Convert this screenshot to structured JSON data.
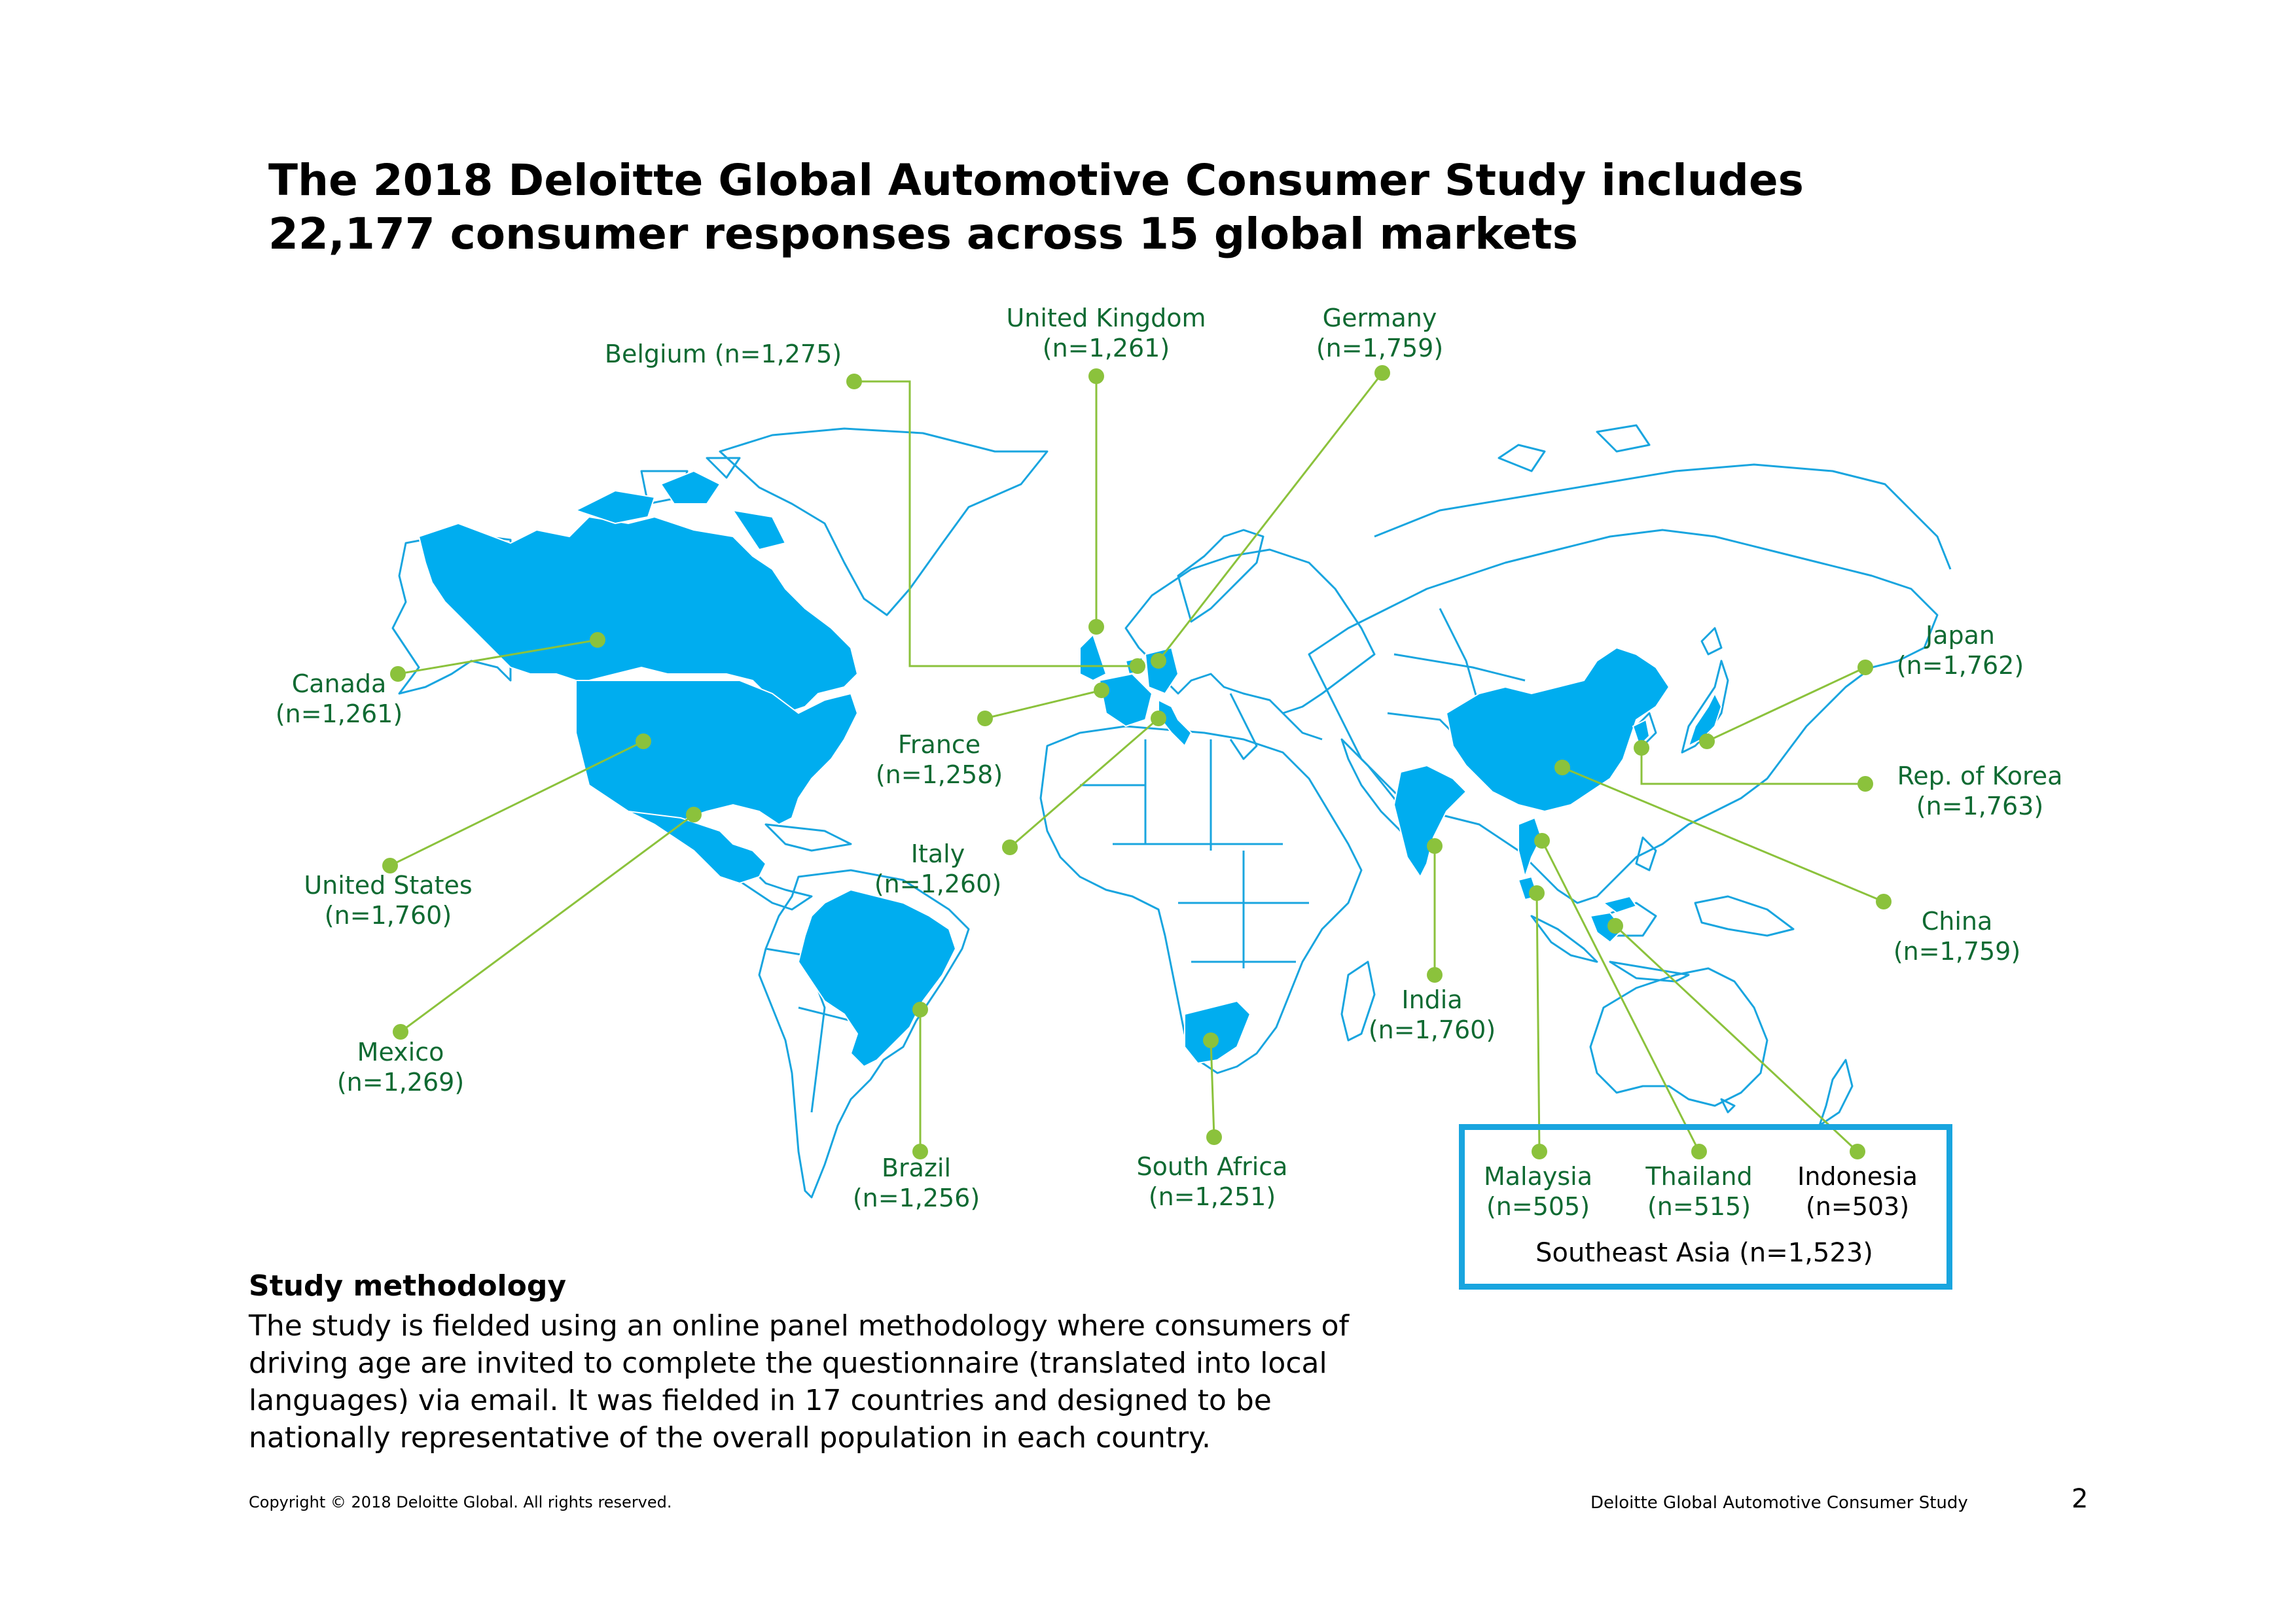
{
  "title": {
    "line1": "The 2018 Deloitte Global Automotive Consumer Study includes",
    "line2": "22,177 consumer responses across 15 global markets"
  },
  "colors": {
    "highlight": "#00adef",
    "outline": "#19a5df",
    "leader": "#8bc23c",
    "label": "#0f6a32"
  },
  "markets": [
    {
      "id": "canada",
      "name": "Canada",
      "n": "(n=1,261)"
    },
    {
      "id": "united-states",
      "name": "United States",
      "n": "(n=1,760)"
    },
    {
      "id": "mexico",
      "name": "Mexico",
      "n": "(n=1,269)"
    },
    {
      "id": "brazil",
      "name": "Brazil",
      "n": "(n=1,256)"
    },
    {
      "id": "belgium",
      "name": "Belgium (n=1,275)",
      "n": ""
    },
    {
      "id": "united-kingdom",
      "name": "United Kingdom",
      "n": "(n=1,261)"
    },
    {
      "id": "germany",
      "name": "Germany",
      "n": "(n=1,759)"
    },
    {
      "id": "france",
      "name": "France",
      "n": "(n=1,258)"
    },
    {
      "id": "italy",
      "name": "Italy",
      "n": "(n=1,260)"
    },
    {
      "id": "south-africa",
      "name": "South Africa",
      "n": "(n=1,251)"
    },
    {
      "id": "india",
      "name": "India",
      "n": "(n=1,760)"
    },
    {
      "id": "japan",
      "name": "Japan",
      "n": "(n=1,762)"
    },
    {
      "id": "korea",
      "name": "Rep. of Korea",
      "n": "(n=1,763)"
    },
    {
      "id": "china",
      "name": "China",
      "n": "(n=1,759)"
    },
    {
      "id": "malaysia",
      "name": "Malaysia",
      "n": "(n=505)"
    },
    {
      "id": "thailand",
      "name": "Thailand",
      "n": "(n=515)"
    },
    {
      "id": "indonesia",
      "name": "Indonesia",
      "n": "(n=503)"
    }
  ],
  "southeast_asia": "Southeast Asia (n=1,523)",
  "methodology": {
    "heading": "Study methodology",
    "body": "The study is fielded using an online panel methodology where consumers of driving age are invited to complete the questionnaire (translated into local languages) via email. It was fielded in 17 countries and designed to be nationally representative of the overall population in each country."
  },
  "footer": {
    "copyright": "Copyright © 2018 Deloitte Global. All rights reserved.",
    "study": "Deloitte Global Automotive Consumer Study",
    "page": "2"
  }
}
